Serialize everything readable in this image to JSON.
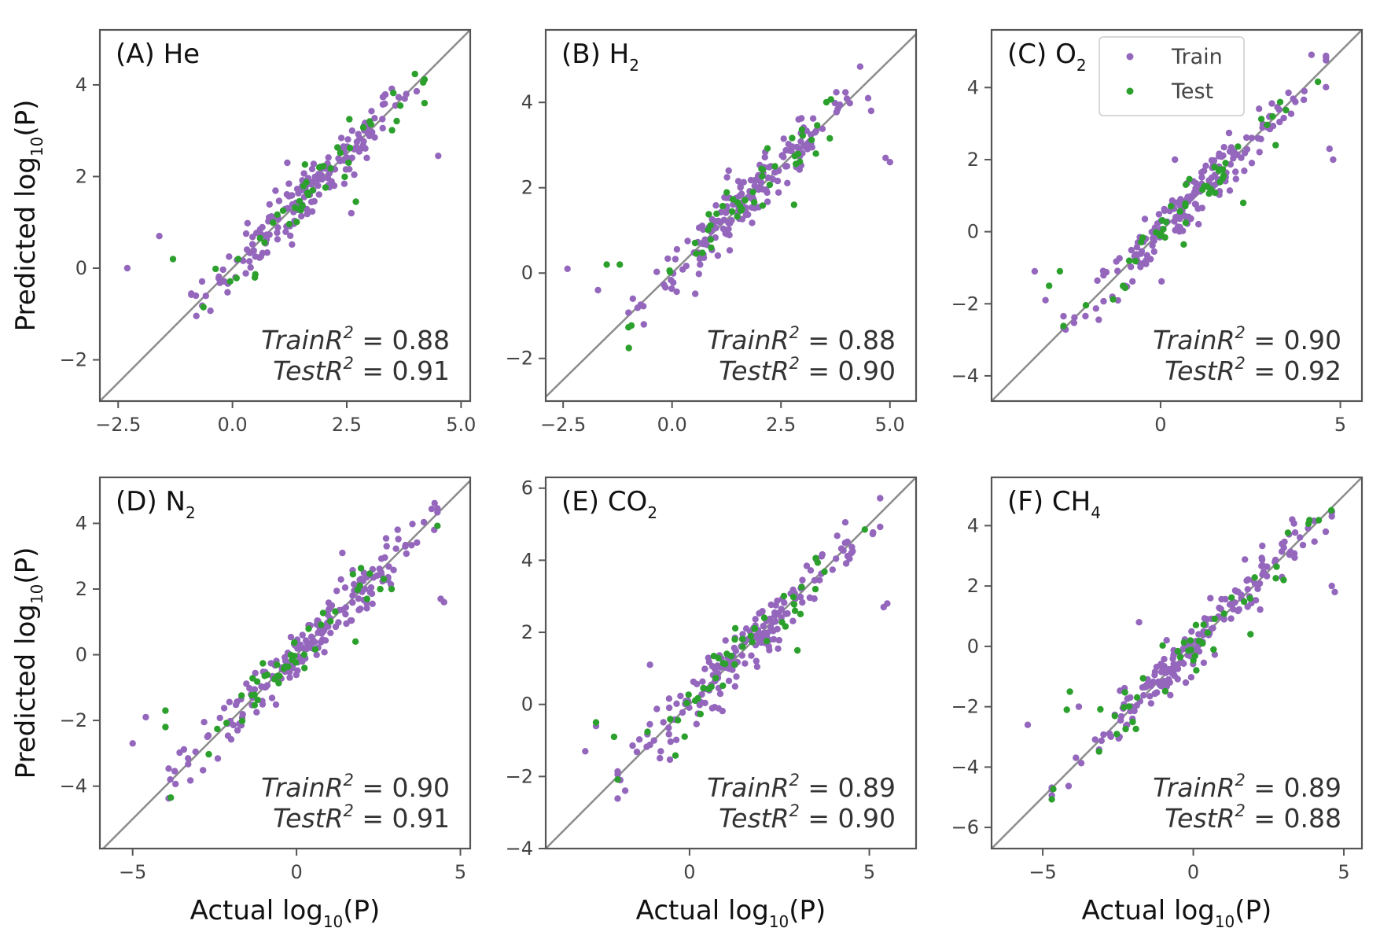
{
  "figure": {
    "colors": {
      "train": "#9467bd",
      "test": "#2ca02c",
      "diagonal": "#8c8c8c",
      "frame": "#555555"
    },
    "legend": {
      "train_label": "Train",
      "test_label": "Test",
      "placement": "top-right of panel C"
    },
    "xlabel_main": "Actual log",
    "xlabel_sub": "10",
    "xlabel_tail": "(P)",
    "ylabel_main": "Predicted log",
    "ylabel_sub": "10",
    "ylabel_tail": "(P)"
  },
  "chart_data": [
    {
      "type": "scatter",
      "panel": "(A)",
      "gas": "He",
      "gas_sub": "",
      "xlim": [
        -2.9,
        5.2
      ],
      "ylim": [
        -2.9,
        5.2
      ],
      "xticks": [
        -2.5,
        0.0,
        2.5,
        5.0
      ],
      "xtick_labels": [
        "−2.5",
        "0.0",
        "2.5",
        "5.0"
      ],
      "yticks": [
        -2,
        0,
        2,
        4
      ],
      "ytick_labels": [
        "−2",
        "0",
        "2",
        "4"
      ],
      "train_r2": "0.88",
      "test_r2": "0.91",
      "outliers_train": [
        [
          -2.3,
          0.0
        ],
        [
          -1.6,
          0.7
        ],
        [
          4.5,
          2.45
        ],
        [
          3.8,
          3.8
        ],
        [
          1.2,
          2.3
        ],
        [
          -0.8,
          -0.6
        ],
        [
          2.6,
          1.2
        ]
      ],
      "outliers_test": [
        [
          -1.3,
          0.2
        ],
        [
          2.7,
          1.45
        ],
        [
          1.9,
          2.2
        ],
        [
          3.0,
          3.2
        ]
      ],
      "train_n": 180,
      "test_n": 45,
      "noise": 0.3
    },
    {
      "type": "scatter",
      "panel": "(B)",
      "gas": "H",
      "gas_sub": "2",
      "xlim": [
        -2.9,
        5.6
      ],
      "ylim": [
        -3.0,
        5.7
      ],
      "xticks": [
        -2.5,
        0.0,
        2.5,
        5.0
      ],
      "xtick_labels": [
        "−2.5",
        "0.0",
        "2.5",
        "5.0"
      ],
      "yticks": [
        -2,
        0,
        2,
        4
      ],
      "ytick_labels": [
        "−2",
        "0",
        "2",
        "4"
      ],
      "train_r2": "0.88",
      "test_r2": "0.90",
      "outliers_train": [
        [
          -2.4,
          0.1
        ],
        [
          -1.7,
          -0.4
        ],
        [
          5.0,
          2.6
        ],
        [
          4.9,
          2.7
        ],
        [
          1.3,
          2.4
        ],
        [
          -0.9,
          -0.6
        ],
        [
          4.5,
          4.1
        ]
      ],
      "outliers_test": [
        [
          -1.5,
          0.2
        ],
        [
          2.8,
          1.6
        ],
        [
          -1.2,
          0.2
        ],
        [
          3.3,
          2.8
        ]
      ],
      "train_n": 180,
      "test_n": 45,
      "noise": 0.3
    },
    {
      "type": "scatter",
      "panel": "(C)",
      "gas": "O",
      "gas_sub": "2",
      "xlim": [
        -4.7,
        5.6
      ],
      "ylim": [
        -4.7,
        5.6
      ],
      "xticks": [
        0,
        5
      ],
      "xtick_labels": [
        "0",
        "5"
      ],
      "yticks": [
        -4,
        -2,
        0,
        2,
        4
      ],
      "ytick_labels": [
        "−4",
        "−2",
        "0",
        "2",
        "4"
      ],
      "train_r2": "0.90",
      "test_r2": "0.92",
      "outliers_train": [
        [
          -3.5,
          -1.1
        ],
        [
          -3.2,
          -1.9
        ],
        [
          4.8,
          2.0
        ],
        [
          4.7,
          2.3
        ],
        [
          0.4,
          2.0
        ],
        [
          -1.0,
          -1.5
        ],
        [
          4.0,
          3.9
        ]
      ],
      "outliers_test": [
        [
          -3.1,
          -1.5
        ],
        [
          -2.8,
          -1.1
        ],
        [
          2.3,
          0.8
        ],
        [
          3.2,
          2.4
        ]
      ],
      "train_n": 190,
      "test_n": 45,
      "noise": 0.35
    },
    {
      "type": "scatter",
      "panel": "(D)",
      "gas": "N",
      "gas_sub": "2",
      "xlim": [
        -6.0,
        5.3
      ],
      "ylim": [
        -5.9,
        5.4
      ],
      "xticks": [
        -5,
        0,
        5
      ],
      "xtick_labels": [
        "−5",
        "0",
        "5"
      ],
      "yticks": [
        -4,
        -2,
        0,
        2,
        4
      ],
      "ytick_labels": [
        "−4",
        "−2",
        "0",
        "2",
        "4"
      ],
      "train_r2": "0.90",
      "test_r2": "0.91",
      "outliers_train": [
        [
          -5.0,
          -2.7
        ],
        [
          -4.6,
          -1.9
        ],
        [
          4.4,
          1.7
        ],
        [
          4.5,
          1.6
        ],
        [
          1.4,
          3.1
        ],
        [
          -1.8,
          -2.3
        ],
        [
          4.2,
          3.8
        ]
      ],
      "outliers_test": [
        [
          -4.0,
          -2.2
        ],
        [
          -4.0,
          -1.7
        ],
        [
          1.8,
          0.4
        ],
        [
          2.9,
          2.0
        ]
      ],
      "train_n": 190,
      "test_n": 45,
      "noise": 0.4
    },
    {
      "type": "scatter",
      "panel": "(E)",
      "gas": "CO",
      "gas_sub": "2",
      "xlim": [
        -4.0,
        6.3
      ],
      "ylim": [
        -4.0,
        6.3
      ],
      "xticks": [
        0,
        5
      ],
      "xtick_labels": [
        "0",
        "5"
      ],
      "yticks": [
        -4,
        -2,
        0,
        2,
        4,
        6
      ],
      "ytick_labels": [
        "−4",
        "−2",
        "0",
        "2",
        "4",
        "6"
      ],
      "train_r2": "0.89",
      "test_r2": "0.90",
      "outliers_train": [
        [
          -2.9,
          -1.3
        ],
        [
          -2.6,
          -0.6
        ],
        [
          5.5,
          2.8
        ],
        [
          5.4,
          2.7
        ],
        [
          -1.1,
          1.1
        ],
        [
          -0.8,
          -1.3
        ],
        [
          4.5,
          4.2
        ]
      ],
      "outliers_test": [
        [
          -2.6,
          -0.5
        ],
        [
          -2.1,
          -0.9
        ],
        [
          3.0,
          1.5
        ],
        [
          3.5,
          3.2
        ]
      ],
      "train_n": 190,
      "test_n": 45,
      "noise": 0.35
    },
    {
      "type": "scatter",
      "panel": "(F)",
      "gas": "CH",
      "gas_sub": "4",
      "xlim": [
        -6.7,
        5.6
      ],
      "ylim": [
        -6.7,
        5.6
      ],
      "xticks": [
        -5,
        0,
        5
      ],
      "xtick_labels": [
        "−5",
        "0",
        "5"
      ],
      "yticks": [
        -6,
        -4,
        -2,
        0,
        2,
        4
      ],
      "ytick_labels": [
        "−6",
        "−4",
        "−2",
        "0",
        "2",
        "4"
      ],
      "train_r2": "0.89",
      "test_r2": "0.88",
      "outliers_train": [
        [
          -5.5,
          -2.6
        ],
        [
          -3.8,
          -2.0
        ],
        [
          4.7,
          1.8
        ],
        [
          4.6,
          2.0
        ],
        [
          -1.8,
          0.8
        ],
        [
          -2.2,
          -2.6
        ],
        [
          4.4,
          3.8
        ]
      ],
      "outliers_test": [
        [
          -4.2,
          -2.1
        ],
        [
          -4.1,
          -1.5
        ],
        [
          1.9,
          0.4
        ],
        [
          3.0,
          2.2
        ]
      ],
      "train_n": 190,
      "test_n": 45,
      "noise": 0.4
    }
  ]
}
